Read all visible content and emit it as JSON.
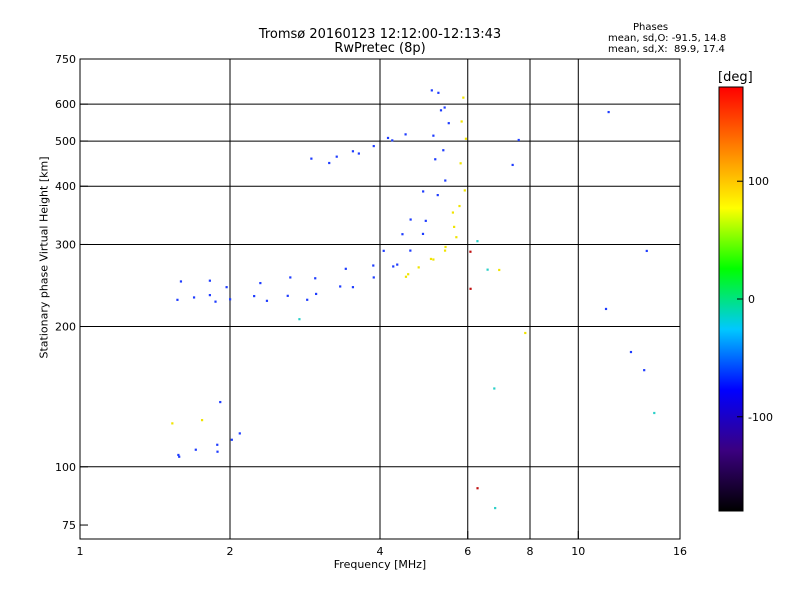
{
  "title_line1": "Tromsø 20160123 12:12:00-12:13:43",
  "title_line2": "RwPretec (8p)",
  "phase_info": {
    "heading": "Phases",
    "o_line": "mean, sd,O: -91.5, 14.8",
    "x_line": "mean, sd,X:  89.9, 17.4"
  },
  "colorbar": {
    "unit": "[deg]",
    "ticks": [
      "100",
      "0",
      "-100"
    ],
    "tick_values": [
      100,
      0,
      -100
    ],
    "range": [
      -180,
      180
    ],
    "colors": [
      "#000000",
      "#3b0080",
      "#0000ff",
      "#00c8ff",
      "#00ff00",
      "#ffff00",
      "#ff8000",
      "#ff0000"
    ]
  },
  "chart_data": {
    "type": "scatter",
    "xlabel": "Frequency [MHz]",
    "ylabel": "Stationary phase Virtual Height [km]",
    "xscale": "log",
    "yscale": "log",
    "xlim": [
      1,
      16
    ],
    "ylim": [
      70,
      750
    ],
    "x_ticks": [
      1,
      2,
      4,
      6,
      8,
      10,
      16
    ],
    "x_tick_labels": [
      "1",
      "2",
      "4",
      "6",
      "8",
      "10",
      "16"
    ],
    "y_ticks": [
      75,
      100,
      200,
      300,
      400,
      500,
      600,
      750
    ],
    "y_tick_labels": [
      "75",
      "100",
      "200",
      "300",
      "400",
      "500",
      "600",
      "750"
    ],
    "x_grid": [
      2,
      4,
      6,
      8,
      10
    ],
    "y_grid": [
      100,
      200,
      300,
      400,
      500,
      600
    ],
    "series": [
      {
        "points": [
          [
            1.6,
            232
          ],
          [
            1.7,
            231
          ],
          [
            1.8,
            230
          ],
          [
            1.9,
            229
          ],
          [
            2.0,
            228
          ],
          [
            2.2,
            228
          ],
          [
            2.4,
            229
          ],
          [
            2.6,
            231
          ],
          [
            2.8,
            233
          ],
          [
            3.0,
            236
          ],
          [
            3.3,
            241
          ],
          [
            3.6,
            247
          ],
          [
            3.9,
            255
          ],
          [
            4.2,
            265
          ],
          [
            4.4,
            275
          ],
          [
            4.6,
            290
          ],
          [
            4.8,
            310
          ],
          [
            5.0,
            340
          ],
          [
            5.2,
            380
          ],
          [
            5.3,
            420
          ],
          [
            5.4,
            480
          ],
          [
            5.45,
            540
          ],
          [
            5.5,
            600
          ],
          [
            1.6,
            250
          ],
          [
            1.8,
            247
          ],
          [
            2.0,
            246
          ],
          [
            2.3,
            247
          ],
          [
            2.6,
            250
          ],
          [
            3.0,
            256
          ],
          [
            3.4,
            264
          ],
          [
            3.8,
            276
          ],
          [
            4.1,
            292
          ],
          [
            4.4,
            312
          ],
          [
            4.7,
            345
          ],
          [
            4.9,
            390
          ],
          [
            5.1,
            450
          ],
          [
            5.2,
            520
          ],
          [
            5.3,
            580
          ],
          [
            5.0,
            630
          ],
          [
            5.3,
            640
          ],
          [
            2.9,
            455
          ],
          [
            3.1,
            458
          ],
          [
            3.3,
            465
          ],
          [
            3.5,
            470
          ],
          [
            3.7,
            478
          ],
          [
            3.9,
            488
          ],
          [
            4.1,
            500
          ],
          [
            4.3,
            508
          ],
          [
            4.5,
            515
          ],
          [
            1.55,
            104
          ],
          [
            1.6,
            106
          ],
          [
            1.7,
            108
          ],
          [
            1.85,
            110
          ],
          [
            1.9,
            112
          ],
          [
            2.0,
            113
          ],
          [
            1.95,
            140
          ],
          [
            2.1,
            118
          ],
          [
            7.5,
            495
          ],
          [
            7.5,
            450
          ],
          [
            11.5,
            575
          ],
          [
            13.5,
            285
          ],
          [
            11.5,
            220
          ],
          [
            13.5,
            160
          ],
          [
            12.5,
            180
          ]
        ]
      },
      {
        "points": [
          [
            4.6,
            260
          ],
          [
            4.8,
            268
          ],
          [
            5.0,
            275
          ],
          [
            5.2,
            282
          ],
          [
            5.4,
            290
          ],
          [
            5.6,
            305
          ],
          [
            5.7,
            330
          ],
          [
            5.75,
            360
          ],
          [
            5.8,
            400
          ],
          [
            5.85,
            450
          ],
          [
            5.9,
            500
          ],
          [
            5.95,
            560
          ],
          [
            5.9,
            620
          ],
          [
            4.5,
            255
          ],
          [
            5.5,
            300
          ],
          [
            5.6,
            350
          ],
          [
            7.7,
            190
          ],
          [
            1.55,
            125
          ],
          [
            1.75,
            125
          ],
          [
            6.8,
            270
          ]
        ]
      },
      {
        "points": [
          [
            6.4,
            310
          ],
          [
            6.6,
            265
          ],
          [
            6.7,
            145
          ],
          [
            2.8,
            210
          ],
          [
            14.2,
            130
          ],
          [
            6.7,
            80
          ]
        ]
      },
      {
        "points": [
          [
            6.2,
            245
          ],
          [
            6.3,
            90
          ],
          [
            6.0,
            285
          ]
        ]
      }
    ]
  }
}
